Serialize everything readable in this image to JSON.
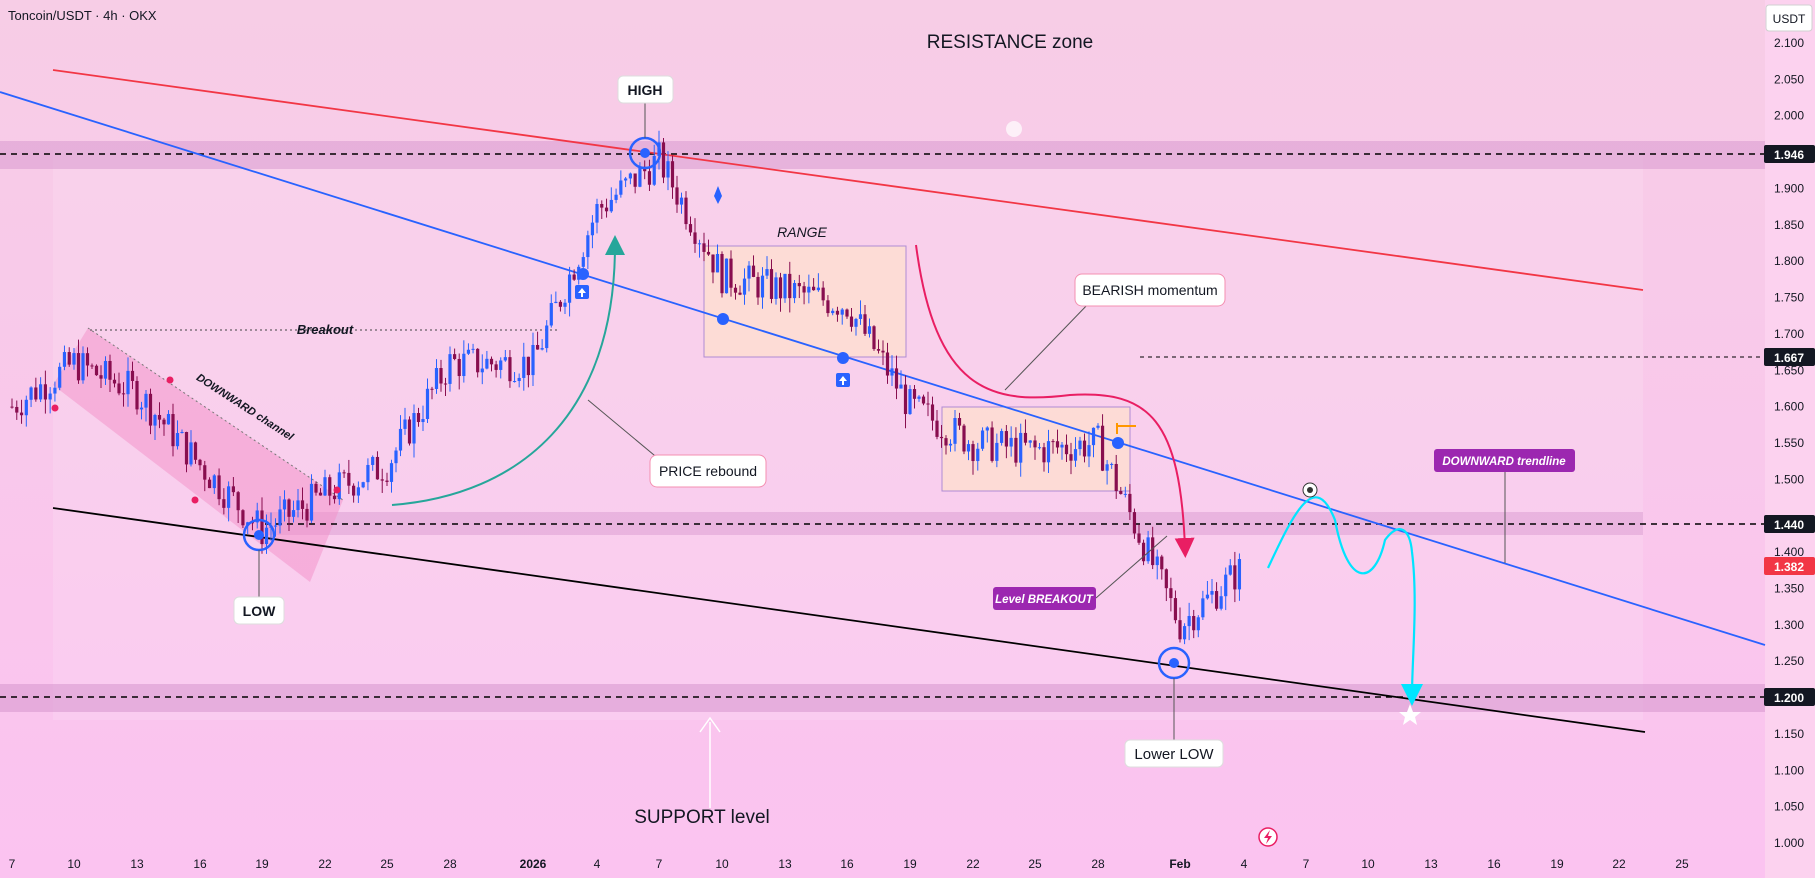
{
  "header": {
    "symbol_title": "Toncoin/USDT · 4h · OKX"
  },
  "axis": {
    "currency_badge": "USDT",
    "y_ticks": [
      "2.100",
      "2.050",
      "2.000",
      "1.900",
      "1.850",
      "1.800",
      "1.750",
      "1.700",
      "1.650",
      "1.600",
      "1.550",
      "1.500",
      "1.400",
      "1.350",
      "1.300",
      "1.250",
      "1.150",
      "1.100",
      "1.050",
      "1.000"
    ],
    "x_ticks": [
      "7",
      "10",
      "13",
      "16",
      "19",
      "22",
      "25",
      "28",
      "2026",
      "4",
      "7",
      "10",
      "13",
      "16",
      "19",
      "22",
      "25",
      "28",
      "Feb",
      "4",
      "7",
      "10",
      "13",
      "16",
      "19",
      "22",
      "25"
    ]
  },
  "price_badges": {
    "resistance": "1.946",
    "mid": "1.667",
    "breakout": "1.440",
    "current": "1.382",
    "support": "1.200"
  },
  "annotations": {
    "resistance_zone": "RESISTANCE zone",
    "support_level": "SUPPORT level",
    "high": "HIGH",
    "low": "LOW",
    "lower_low": "Lower LOW",
    "range": "RANGE",
    "breakout": "Breakout",
    "downward_channel": "DOWNWARD channel",
    "price_rebound": "PRICE rebound",
    "bearish_momentum": "BEARISH momentum",
    "level_breakout": "Level BREAKOUT",
    "downward_trendline": "DOWNWARD trendline"
  },
  "colors": {
    "background": "#f7c9ea",
    "zone_band": "#d99ad0",
    "resistance_line": "#f23645",
    "trendline": "#2962ff",
    "support_line": "#000000",
    "candle_up": "#2962ff",
    "candle_down": "#880e4f",
    "current_price": "#f23645",
    "projection": "#00e5ff",
    "momentum_arrow": "#e91e63",
    "rebound_arrow": "#26a69a",
    "purple_label": "#9c27b0"
  },
  "chart_data": {
    "type": "candlestick",
    "title": "Toncoin/USDT · 4h · OKX",
    "ylim": [
      1.0,
      2.1
    ],
    "key_levels": [
      1.946,
      1.667,
      1.44,
      1.2
    ],
    "current_price": 1.382,
    "x_labels": [
      "7",
      "10",
      "13",
      "16",
      "19",
      "22",
      "25",
      "28",
      "2026",
      "4",
      "7",
      "10",
      "13",
      "16",
      "19",
      "22",
      "25",
      "28",
      "Feb",
      "4",
      "7",
      "10",
      "13",
      "16",
      "19",
      "22",
      "25"
    ],
    "price_path": [
      {
        "x": "7",
        "y": 1.6
      },
      {
        "x": "10",
        "y": 1.66
      },
      {
        "x": "13",
        "y": 1.62
      },
      {
        "x": "16",
        "y": 1.52
      },
      {
        "x": "19",
        "y": 1.43
      },
      {
        "x": "22",
        "y": 1.48
      },
      {
        "x": "25",
        "y": 1.52
      },
      {
        "x": "28",
        "y": 1.66
      },
      {
        "x": "2026",
        "y": 1.66
      },
      {
        "x": "4",
        "y": 1.87
      },
      {
        "x": "7",
        "y": 1.94
      },
      {
        "x": "10",
        "y": 1.78
      },
      {
        "x": "13",
        "y": 1.76
      },
      {
        "x": "16",
        "y": 1.74
      },
      {
        "x": "19",
        "y": 1.6
      },
      {
        "x": "22",
        "y": 1.55
      },
      {
        "x": "25",
        "y": 1.54
      },
      {
        "x": "28",
        "y": 1.55
      },
      {
        "x": "Feb",
        "y": 1.3
      },
      {
        "x": "4",
        "y": 1.38
      }
    ]
  }
}
